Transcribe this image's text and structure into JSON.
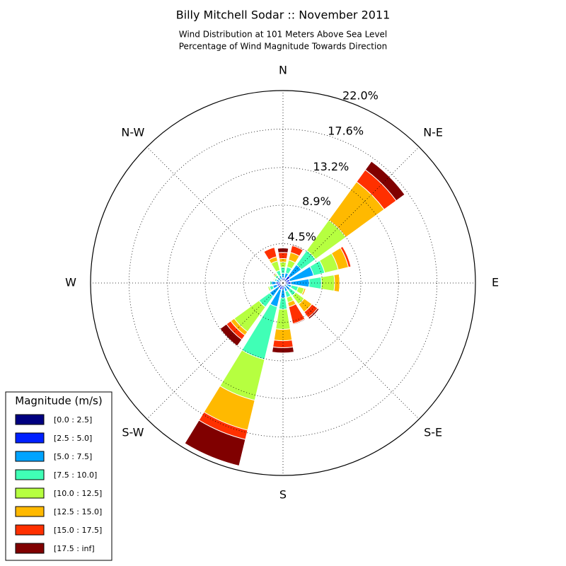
{
  "chart_data": {
    "type": "windrose",
    "title": "Billy Mitchell Sodar :: November 2011",
    "subtitle": [
      "Wind Distribution at 101 Meters Above Sea Level",
      "Percentage of Wind Magnitude Towards Direction"
    ],
    "categories": [
      "N",
      null,
      "N-E",
      null,
      "E",
      null,
      "S-E",
      null,
      "S",
      null,
      "S-W",
      null,
      "W",
      null,
      "N-W",
      null
    ],
    "ylim": [
      0,
      22
    ],
    "yticks": [
      {
        "value": 4.5,
        "label": "4.5%"
      },
      {
        "value": 8.9,
        "label": "8.9%"
      },
      {
        "value": 13.2,
        "label": "13.2%"
      },
      {
        "value": 17.6,
        "label": "17.6%"
      },
      {
        "value": 22.0,
        "label": "22.0%"
      }
    ],
    "grid": true,
    "legend": "lower left",
    "legend_title": "Magnitude (m/s)",
    "series": [
      {
        "name": "[0.0 : 2.5]",
        "color": "#000080",
        "values": [
          0.2,
          0.2,
          0.2,
          0.2,
          0.2,
          0.1,
          0.1,
          0.1,
          0.2,
          0.2,
          0.2,
          0.2,
          0.2,
          0.1,
          0.1,
          0.1
        ]
      },
      {
        "name": "[2.5 : 5.0]",
        "color": "#0020ff",
        "values": [
          0.4,
          0.4,
          0.8,
          0.6,
          0.7,
          0.3,
          0.3,
          0.3,
          0.5,
          0.6,
          0.5,
          0.5,
          0.6,
          0.3,
          0.3,
          0.3
        ]
      },
      {
        "name": "[5.0 : 7.5]",
        "color": "#00a4ff",
        "values": [
          0.5,
          0.6,
          1.6,
          2.8,
          2.1,
          0.6,
          0.6,
          0.6,
          1.0,
          2.0,
          1.2,
          0.5,
          0.5,
          0.4,
          0.4,
          0.5
        ]
      },
      {
        "name": "[7.5 : 10.0]",
        "color": "#40ffb6",
        "values": [
          0.7,
          0.7,
          2.0,
          1.3,
          1.4,
          0.8,
          0.8,
          0.7,
          1.3,
          6.2,
          1.5,
          0.4,
          0.2,
          0.2,
          0.3,
          0.6
        ]
      },
      {
        "name": "[10.0 : 12.5]",
        "color": "#b6ff40",
        "values": [
          0.6,
          0.8,
          4.3,
          1.6,
          1.5,
          0.7,
          1.2,
          0.6,
          2.3,
          4.8,
          3.5,
          0.2,
          0.1,
          0.1,
          0.2,
          1.1
        ]
      },
      {
        "name": "[12.5 : 15.0]",
        "color": "#ffb900",
        "values": [
          0.4,
          0.9,
          5.4,
          1.2,
          0.6,
          0.2,
          1.1,
          0.5,
          1.3,
          3.5,
          0.5,
          0,
          0,
          0.1,
          0.1,
          0.5
        ]
      },
      {
        "name": "[15.0 : 17.5]",
        "color": "#ff3000",
        "values": [
          0.7,
          0.8,
          1.7,
          0.3,
          0,
          0,
          0.8,
          2.0,
          0.8,
          1.1,
          0.6,
          0,
          0,
          0,
          0.1,
          1.1
        ]
      },
      {
        "name": "[17.5 : inf]",
        "color": "#800000",
        "values": [
          0.5,
          0.1,
          1.2,
          0,
          0,
          0,
          0.2,
          0.1,
          0.6,
          3.1,
          0.9,
          0,
          0,
          0,
          0,
          0
        ]
      }
    ]
  }
}
